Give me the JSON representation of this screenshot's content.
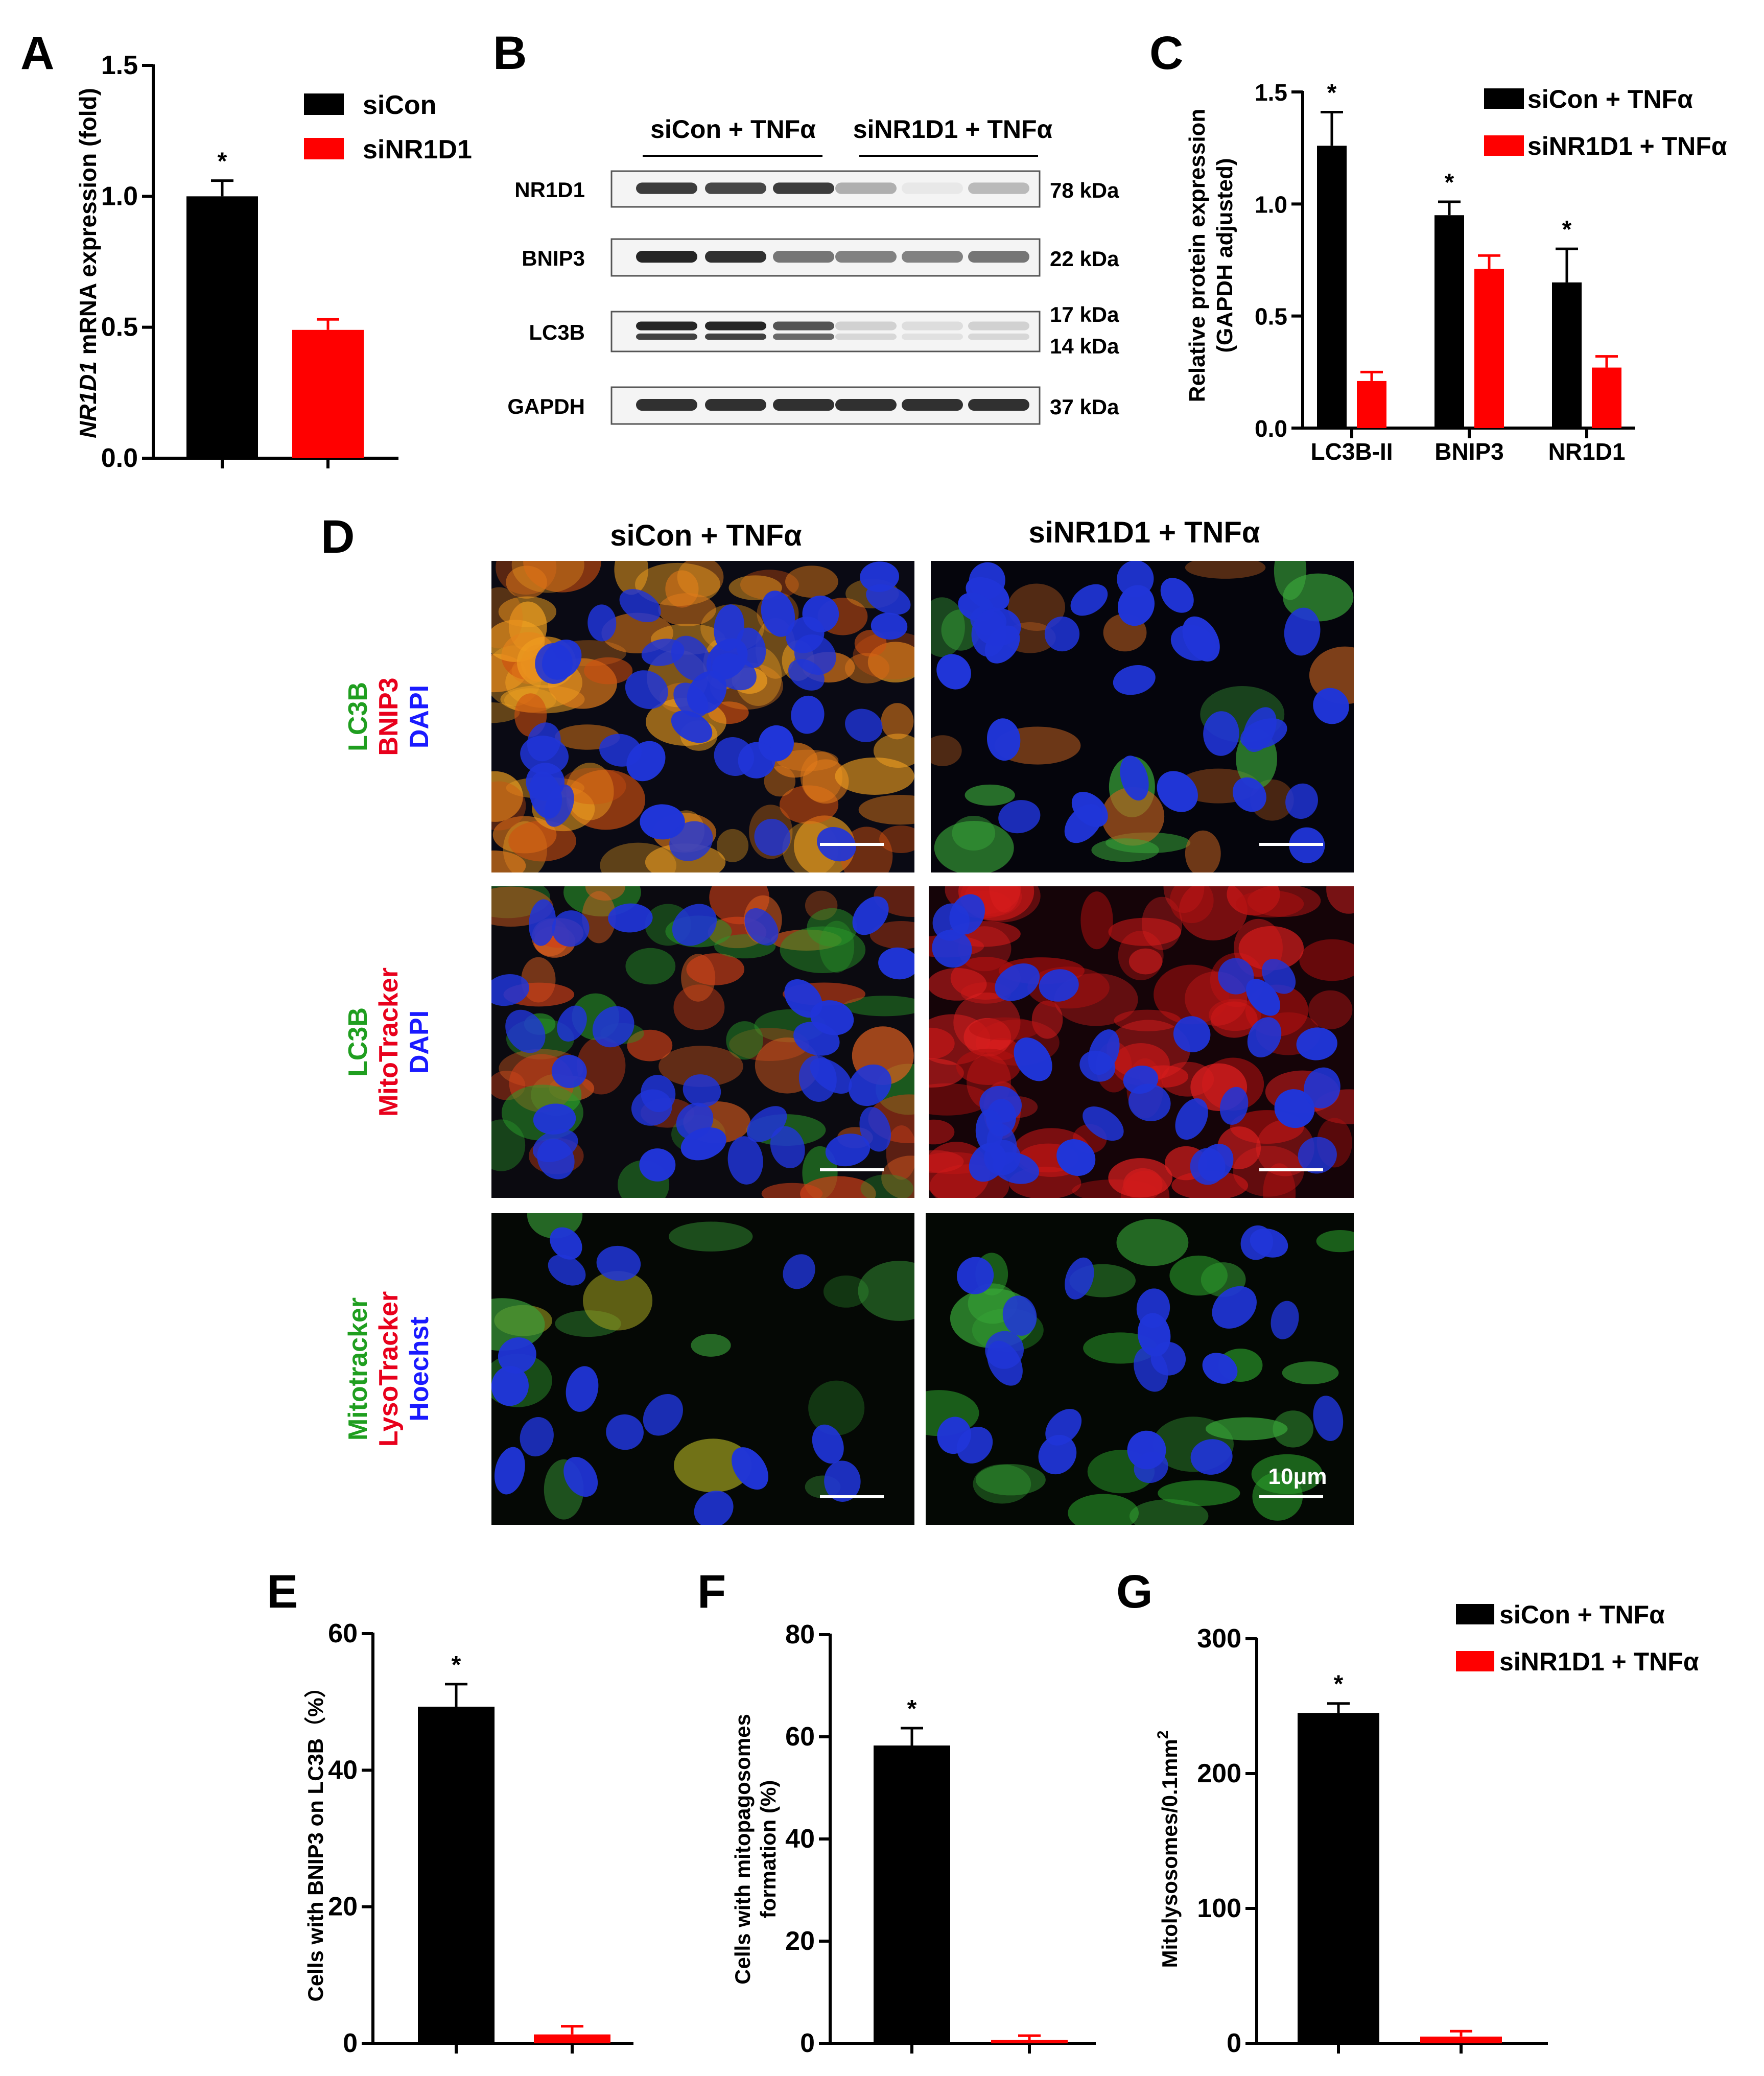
{
  "panel_labels": {
    "A": "A",
    "B": "B",
    "C": "C",
    "D": "D",
    "E": "E",
    "F": "F",
    "G": "G"
  },
  "colors": {
    "control": "#000000",
    "knockdown": "#ff0000",
    "green": "#1f9e1f",
    "red": "#e8001c",
    "blue": "#1a1aff"
  },
  "chart_data": [
    {
      "panel": "A",
      "type": "bar",
      "categories": [
        "siCon",
        "siNR1D1"
      ],
      "values": [
        1.0,
        0.49
      ],
      "errors": [
        0.06,
        0.04
      ],
      "ylabel_italic": "NR1D1",
      "ylabel_rest": " mRNA expression (fold)",
      "ylim": [
        0,
        1.5
      ],
      "yticks": [
        "0.0",
        "0.5",
        "1.0",
        "1.5"
      ],
      "legend": [
        "siCon",
        "siNR1D1"
      ],
      "significance": [
        "*",
        ""
      ]
    },
    {
      "panel": "C",
      "type": "bar",
      "categories": [
        "LC3B-II",
        "BNIP3",
        "NR1D1"
      ],
      "series": [
        {
          "name": "siCon + TNFα",
          "values": [
            1.26,
            0.95,
            0.65
          ],
          "errors": [
            0.15,
            0.06,
            0.15
          ]
        },
        {
          "name": "siNR1D1 + TNFα",
          "values": [
            0.21,
            0.71,
            0.27
          ],
          "errors": [
            0.04,
            0.06,
            0.05
          ]
        }
      ],
      "ylabel_line1": "Relative protein expression",
      "ylabel_line2": "(GAPDH adjusted)",
      "ylim": [
        0,
        1.5
      ],
      "yticks": [
        "0.0",
        "0.5",
        "1.0",
        "1.5"
      ],
      "significance": [
        "*",
        "*",
        "*"
      ]
    },
    {
      "panel": "E",
      "type": "bar",
      "categories": [
        "siCon + TNFα",
        "siNR1D1 + TNFα"
      ],
      "values": [
        49.3,
        1.3
      ],
      "errors": [
        3.3,
        1.2
      ],
      "ylabel": "Cells with BNIP3 on LC3B（%）",
      "ylim": [
        0,
        60
      ],
      "yticks": [
        "0",
        "20",
        "40",
        "60"
      ],
      "significance": [
        "*",
        ""
      ]
    },
    {
      "panel": "F",
      "type": "bar",
      "categories": [
        "siCon + TNFα",
        "siNR1D1 + TNFα"
      ],
      "values": [
        58.3,
        0.7
      ],
      "errors": [
        3.4,
        0.8
      ],
      "ylabel_line1": "Cells with mitopagosomes",
      "ylabel_line2": "formation (%)",
      "ylim": [
        0,
        80
      ],
      "yticks": [
        "0",
        "20",
        "40",
        "60",
        "80"
      ],
      "significance": [
        "*",
        ""
      ]
    },
    {
      "panel": "G",
      "type": "bar",
      "categories": [
        "siCon + TNFα",
        "siNR1D1 + TNFα"
      ],
      "values": [
        245,
        5
      ],
      "errors": [
        7,
        4
      ],
      "ylabel": "Mitolysosomes/0.1mm",
      "ylabel_sup": "2",
      "ylim": [
        0,
        300
      ],
      "yticks": [
        "0",
        "100",
        "200",
        "300"
      ],
      "legend": [
        "siCon + TNFα",
        "siNR1D1 + TNFα"
      ],
      "significance": [
        "*",
        ""
      ]
    }
  ],
  "blot": {
    "group1": "siCon + TNFα",
    "group2": "siNR1D1 + TNFα",
    "rows": [
      {
        "label": "NR1D1",
        "kda": [
          "78 kDa"
        ],
        "intensity": [
          0.85,
          0.8,
          0.85,
          0.35,
          0.1,
          0.3
        ],
        "double": false
      },
      {
        "label": "BNIP3",
        "kda": [
          "22 kDa"
        ],
        "intensity": [
          0.95,
          0.9,
          0.6,
          0.55,
          0.55,
          0.6
        ],
        "double": false
      },
      {
        "label": "LC3B",
        "kda": [
          "17 kDa",
          "14 kDa"
        ],
        "intensity": [
          0.95,
          0.95,
          0.75,
          0.2,
          0.15,
          0.2
        ],
        "double": true
      },
      {
        "label": "GAPDH",
        "kda": [
          "37 kDa"
        ],
        "intensity": [
          0.9,
          0.9,
          0.9,
          0.9,
          0.9,
          0.9
        ],
        "double": false
      }
    ]
  },
  "micro": {
    "col1": "siCon + TNFα",
    "col2": "siNR1D1 + TNFα",
    "scale": "10μm",
    "rows": [
      {
        "labels": [
          "LC3B",
          "BNIP3",
          "DAPI"
        ]
      },
      {
        "labels": [
          "LC3B",
          "MitoTracker",
          "DAPI"
        ]
      },
      {
        "labels": [
          "Mitotracker",
          "LysoTracker",
          "Hoechst"
        ]
      }
    ]
  }
}
